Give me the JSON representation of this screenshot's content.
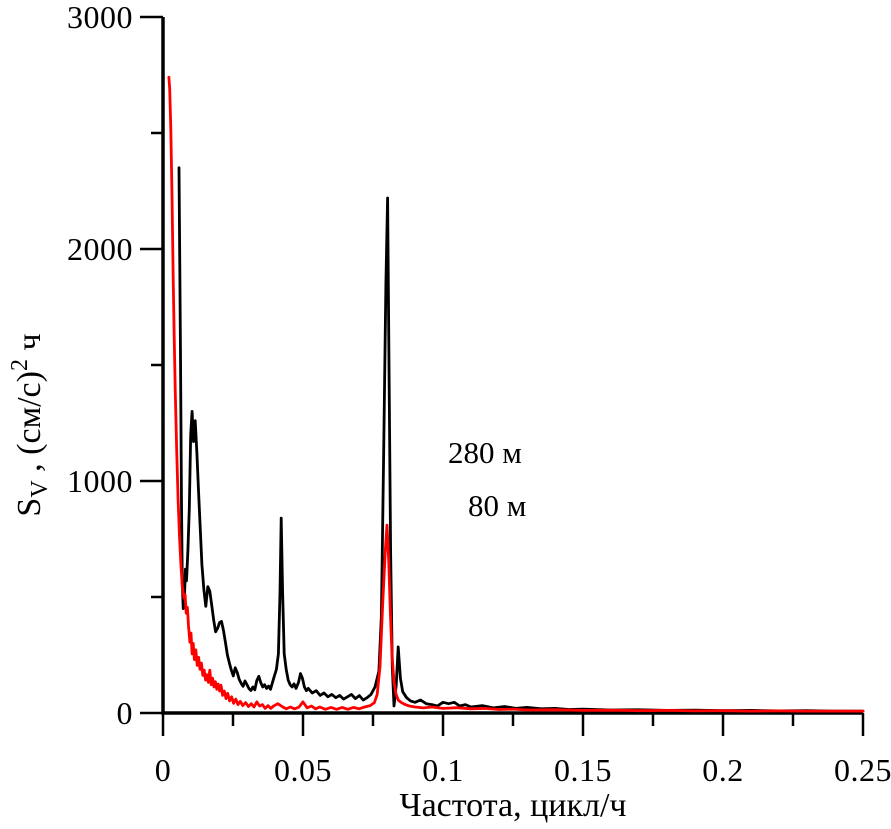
{
  "figure": {
    "background_color": "#ffffff",
    "axis_color": "#000000"
  },
  "chart_data": {
    "type": "line",
    "title": "",
    "xlabel": "Частота, цикл/ч",
    "ylabel": "S_V , (см/с)^2 ч",
    "ylabel_parts": {
      "base": "S",
      "sub": "V",
      "mid": " , (см/с)",
      "sup": "2",
      "end": " ч"
    },
    "xlim": [
      0,
      0.25
    ],
    "ylim": [
      0,
      3000
    ],
    "grid": false,
    "legend_position": "inside upper-middle-right, stacked text labels",
    "x_axis": {
      "major": [
        {
          "value": 0,
          "label": "0"
        },
        {
          "value": 0.05,
          "label": "0.05"
        },
        {
          "value": 0.1,
          "label": "0.1"
        },
        {
          "value": 0.15,
          "label": "0.15"
        },
        {
          "value": 0.2,
          "label": "0.2"
        },
        {
          "value": 0.25,
          "label": "0.25"
        }
      ],
      "minor": [
        0.025,
        0.075,
        0.125,
        0.175,
        0.225
      ]
    },
    "y_axis": {
      "major": [
        {
          "value": 0,
          "label": "0"
        },
        {
          "value": 1000,
          "label": "1000"
        },
        {
          "value": 2000,
          "label": "2000"
        },
        {
          "value": 3000,
          "label": "3000"
        }
      ],
      "minor": [
        500,
        1500,
        2500
      ]
    },
    "series": [
      {
        "id": "280m",
        "name": "280 м",
        "color": "#000000",
        "points": [
          [
            0.0057,
            2350
          ],
          [
            0.0062,
            1600
          ],
          [
            0.0066,
            900
          ],
          [
            0.0069,
            560
          ],
          [
            0.0072,
            450
          ],
          [
            0.0076,
            480
          ],
          [
            0.008,
            620
          ],
          [
            0.0084,
            570
          ],
          [
            0.0089,
            700
          ],
          [
            0.0094,
            880
          ],
          [
            0.0099,
            1200
          ],
          [
            0.0104,
            1300
          ],
          [
            0.0109,
            1170
          ],
          [
            0.0115,
            1260
          ],
          [
            0.0121,
            1120
          ],
          [
            0.0127,
            950
          ],
          [
            0.0133,
            800
          ],
          [
            0.0139,
            640
          ],
          [
            0.0146,
            530
          ],
          [
            0.0153,
            460
          ],
          [
            0.016,
            545
          ],
          [
            0.0167,
            525
          ],
          [
            0.0174,
            465
          ],
          [
            0.0181,
            400
          ],
          [
            0.0188,
            350
          ],
          [
            0.0195,
            365
          ],
          [
            0.0202,
            390
          ],
          [
            0.0209,
            395
          ],
          [
            0.0216,
            355
          ],
          [
            0.0223,
            305
          ],
          [
            0.023,
            250
          ],
          [
            0.0237,
            215
          ],
          [
            0.0244,
            185
          ],
          [
            0.0251,
            160
          ],
          [
            0.0258,
            195
          ],
          [
            0.0265,
            175
          ],
          [
            0.0272,
            145
          ],
          [
            0.0279,
            128
          ],
          [
            0.0286,
            115
          ],
          [
            0.0293,
            138
          ],
          [
            0.03,
            122
          ],
          [
            0.0307,
            105
          ],
          [
            0.0314,
            97
          ],
          [
            0.0321,
            112
          ],
          [
            0.0328,
            100
          ],
          [
            0.0335,
            140
          ],
          [
            0.0342,
            158
          ],
          [
            0.0349,
            132
          ],
          [
            0.0356,
            112
          ],
          [
            0.0363,
            122
          ],
          [
            0.037,
            106
          ],
          [
            0.0377,
            116
          ],
          [
            0.0384,
            102
          ],
          [
            0.0391,
            132
          ],
          [
            0.0398,
            160
          ],
          [
            0.0405,
            188
          ],
          [
            0.0412,
            255
          ],
          [
            0.0418,
            520
          ],
          [
            0.0422,
            840
          ],
          [
            0.0427,
            520
          ],
          [
            0.0433,
            255
          ],
          [
            0.044,
            188
          ],
          [
            0.0447,
            142
          ],
          [
            0.0454,
            122
          ],
          [
            0.0461,
            112
          ],
          [
            0.0468,
            126
          ],
          [
            0.0475,
            106
          ],
          [
            0.0484,
            132
          ],
          [
            0.0491,
            170
          ],
          [
            0.0498,
            150
          ],
          [
            0.0505,
            112
          ],
          [
            0.0512,
            96
          ],
          [
            0.0519,
            106
          ],
          [
            0.0533,
            86
          ],
          [
            0.0547,
            96
          ],
          [
            0.0561,
            76
          ],
          [
            0.0575,
            86
          ],
          [
            0.0589,
            70
          ],
          [
            0.0603,
            80
          ],
          [
            0.0617,
            66
          ],
          [
            0.0631,
            76
          ],
          [
            0.0645,
            60
          ],
          [
            0.0659,
            70
          ],
          [
            0.0673,
            80
          ],
          [
            0.0687,
            62
          ],
          [
            0.0701,
            75
          ],
          [
            0.0715,
            56
          ],
          [
            0.0729,
            66
          ],
          [
            0.0743,
            80
          ],
          [
            0.0757,
            112
          ],
          [
            0.0771,
            180
          ],
          [
            0.078,
            420
          ],
          [
            0.0788,
            1100
          ],
          [
            0.0796,
            1850
          ],
          [
            0.0802,
            2220
          ],
          [
            0.0808,
            1400
          ],
          [
            0.0813,
            700
          ],
          [
            0.0819,
            200
          ],
          [
            0.0825,
            30
          ],
          [
            0.0833,
            120
          ],
          [
            0.084,
            285
          ],
          [
            0.0848,
            150
          ],
          [
            0.0856,
            92
          ],
          [
            0.087,
            66
          ],
          [
            0.0884,
            52
          ],
          [
            0.09,
            46
          ],
          [
            0.092,
            56
          ],
          [
            0.094,
            40
          ],
          [
            0.096,
            36
          ],
          [
            0.098,
            30
          ],
          [
            0.1,
            46
          ],
          [
            0.102,
            40
          ],
          [
            0.104,
            46
          ],
          [
            0.106,
            30
          ],
          [
            0.108,
            36
          ],
          [
            0.11,
            26
          ],
          [
            0.114,
            32
          ],
          [
            0.118,
            22
          ],
          [
            0.122,
            28
          ],
          [
            0.126,
            20
          ],
          [
            0.13,
            24
          ],
          [
            0.135,
            18
          ],
          [
            0.14,
            20
          ],
          [
            0.145,
            15
          ],
          [
            0.15,
            17
          ],
          [
            0.16,
            13
          ],
          [
            0.17,
            14
          ],
          [
            0.18,
            11
          ],
          [
            0.19,
            12
          ],
          [
            0.2,
            10
          ],
          [
            0.21,
            11
          ],
          [
            0.22,
            9
          ],
          [
            0.23,
            10
          ],
          [
            0.24,
            8
          ],
          [
            0.25,
            8
          ]
        ]
      },
      {
        "id": "80m",
        "name": "80 м",
        "color": "#ff0000",
        "points": [
          [
            0.0021,
            2740
          ],
          [
            0.0024,
            2690
          ],
          [
            0.0028,
            2520
          ],
          [
            0.0032,
            2230
          ],
          [
            0.0036,
            1900
          ],
          [
            0.004,
            1620
          ],
          [
            0.0044,
            1380
          ],
          [
            0.0049,
            1130
          ],
          [
            0.0054,
            920
          ],
          [
            0.0059,
            760
          ],
          [
            0.0064,
            640
          ],
          [
            0.0069,
            545
          ],
          [
            0.0075,
            495
          ],
          [
            0.0079,
            510
          ],
          [
            0.0083,
            430
          ],
          [
            0.0087,
            455
          ],
          [
            0.0091,
            375
          ],
          [
            0.0096,
            305
          ],
          [
            0.01,
            345
          ],
          [
            0.0104,
            255
          ],
          [
            0.0108,
            300
          ],
          [
            0.0112,
            230
          ],
          [
            0.0117,
            272
          ],
          [
            0.0122,
            205
          ],
          [
            0.0127,
            240
          ],
          [
            0.0132,
            188
          ],
          [
            0.0137,
            215
          ],
          [
            0.0142,
            162
          ],
          [
            0.0147,
            185
          ],
          [
            0.0152,
            142
          ],
          [
            0.0157,
            165
          ],
          [
            0.0162,
            132
          ],
          [
            0.0167,
            185
          ],
          [
            0.0172,
            122
          ],
          [
            0.0177,
            150
          ],
          [
            0.0182,
            112
          ],
          [
            0.0187,
            135
          ],
          [
            0.0192,
            102
          ],
          [
            0.0197,
            125
          ],
          [
            0.0202,
            95
          ],
          [
            0.0207,
            120
          ],
          [
            0.0213,
            76
          ],
          [
            0.0219,
            95
          ],
          [
            0.0225,
            62
          ],
          [
            0.0231,
            85
          ],
          [
            0.0238,
            52
          ],
          [
            0.0245,
            70
          ],
          [
            0.0252,
            42
          ],
          [
            0.026,
            60
          ],
          [
            0.0268,
            36
          ],
          [
            0.0276,
            50
          ],
          [
            0.0285,
            32
          ],
          [
            0.0295,
            45
          ],
          [
            0.0305,
            28
          ],
          [
            0.0315,
            40
          ],
          [
            0.0325,
            26
          ],
          [
            0.0335,
            48
          ],
          [
            0.0345,
            30
          ],
          [
            0.0355,
            36
          ],
          [
            0.0365,
            20
          ],
          [
            0.0375,
            32
          ],
          [
            0.0385,
            20
          ],
          [
            0.0395,
            30
          ],
          [
            0.041,
            40
          ],
          [
            0.0425,
            28
          ],
          [
            0.044,
            18
          ],
          [
            0.0455,
            26
          ],
          [
            0.047,
            18
          ],
          [
            0.0485,
            25
          ],
          [
            0.05,
            48
          ],
          [
            0.0515,
            22
          ],
          [
            0.053,
            30
          ],
          [
            0.0545,
            18
          ],
          [
            0.056,
            26
          ],
          [
            0.058,
            16
          ],
          [
            0.06,
            24
          ],
          [
            0.062,
            16
          ],
          [
            0.064,
            24
          ],
          [
            0.066,
            16
          ],
          [
            0.068,
            24
          ],
          [
            0.07,
            18
          ],
          [
            0.072,
            26
          ],
          [
            0.074,
            32
          ],
          [
            0.0755,
            45
          ],
          [
            0.0765,
            80
          ],
          [
            0.0775,
            200
          ],
          [
            0.0785,
            480
          ],
          [
            0.0794,
            700
          ],
          [
            0.08,
            810
          ],
          [
            0.0806,
            660
          ],
          [
            0.0812,
            430
          ],
          [
            0.0818,
            250
          ],
          [
            0.0825,
            135
          ],
          [
            0.0832,
            82
          ],
          [
            0.084,
            56
          ],
          [
            0.085,
            46
          ],
          [
            0.0865,
            36
          ],
          [
            0.088,
            30
          ],
          [
            0.09,
            26
          ],
          [
            0.093,
            22
          ],
          [
            0.096,
            26
          ],
          [
            0.1,
            20
          ],
          [
            0.105,
            23
          ],
          [
            0.11,
            18
          ],
          [
            0.115,
            20
          ],
          [
            0.12,
            15
          ],
          [
            0.125,
            17
          ],
          [
            0.13,
            13
          ],
          [
            0.14,
            14
          ],
          [
            0.15,
            11
          ],
          [
            0.16,
            12
          ],
          [
            0.17,
            10
          ],
          [
            0.18,
            11
          ],
          [
            0.19,
            9
          ],
          [
            0.2,
            10
          ],
          [
            0.21,
            8
          ],
          [
            0.22,
            9
          ],
          [
            0.23,
            8
          ],
          [
            0.24,
            8
          ],
          [
            0.25,
            8
          ]
        ]
      }
    ]
  }
}
